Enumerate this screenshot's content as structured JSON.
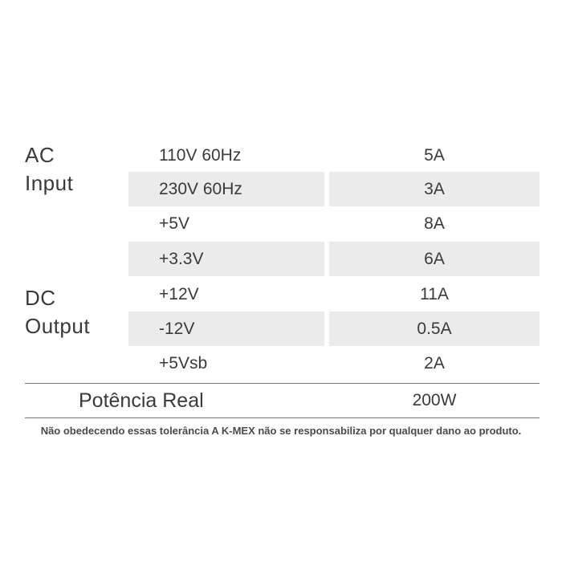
{
  "ac_input": {
    "label_line1": "AC",
    "label_line2": "Input",
    "rows": [
      {
        "label": "110V 60Hz",
        "value": "5A"
      },
      {
        "label": "230V 60Hz",
        "value": "3A"
      }
    ]
  },
  "dc_output": {
    "label_line1": "DC",
    "label_line2": "Output",
    "rows": [
      {
        "label": "+5V",
        "value": "8A"
      },
      {
        "label": "+3.3V",
        "value": "6A"
      },
      {
        "label": "+12V",
        "value": "11A"
      },
      {
        "label": "-12V",
        "value": "0.5A"
      },
      {
        "label": "+5Vsb",
        "value": "2A"
      }
    ]
  },
  "total": {
    "label": "Potência Real",
    "value": "200W"
  },
  "disclaimer": "Não obedecendo essas tolerância A K-MEX não se responsabiliza por qualquer dano ao produto.",
  "colors": {
    "text": "#3a3a3a",
    "row_shade": "#ebebeb",
    "rule": "#777777"
  }
}
